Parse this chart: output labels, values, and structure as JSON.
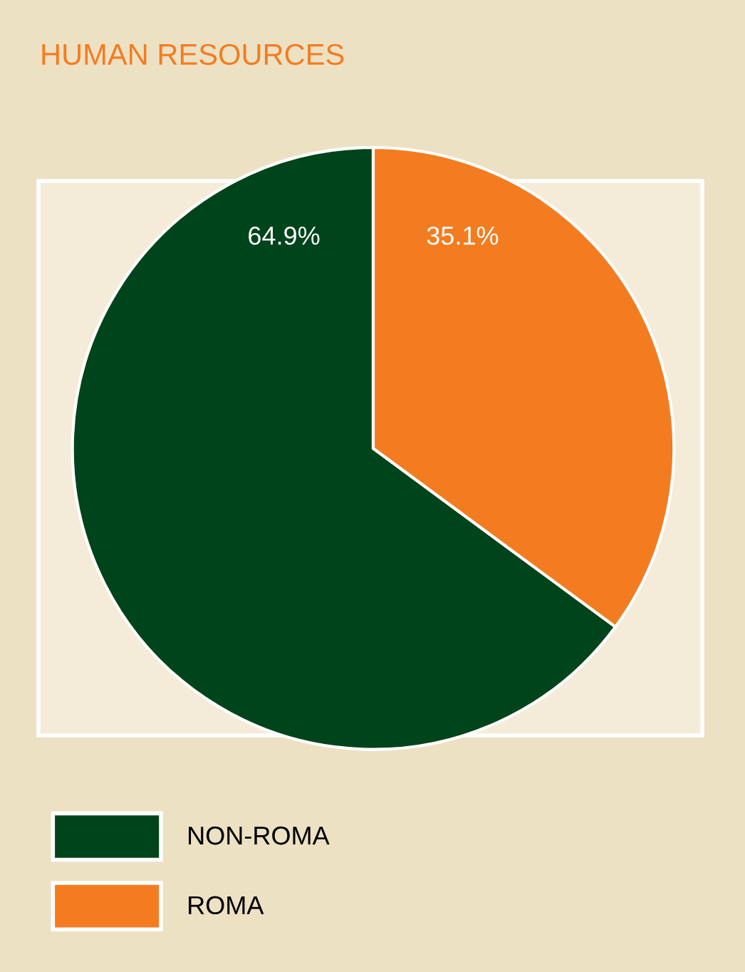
{
  "chart_data": {
    "type": "pie",
    "title": "HUMAN RESOURCES",
    "categories": [
      "NON-ROMA",
      "ROMA"
    ],
    "values": [
      64.9,
      35.1
    ],
    "colors": [
      "#00441b",
      "#f47c20"
    ],
    "value_labels": [
      "64.9%",
      "35.1%"
    ],
    "legend": "bottom left"
  }
}
